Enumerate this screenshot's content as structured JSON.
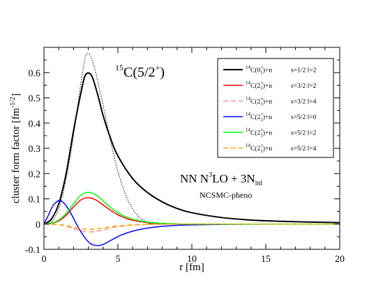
{
  "chart_data": {
    "type": "line",
    "xlabel": "r [fm]",
    "ylabel": "cluster form factor [fm^-1/2]",
    "ylabel_parts": {
      "main": "cluster form factor [fm",
      "sup": "-1/2",
      "close": "]"
    },
    "xlim": [
      0,
      20
    ],
    "ylim": [
      -0.1,
      0.7
    ],
    "x_ticks": [
      0,
      5,
      10,
      15,
      20
    ],
    "x_tick_labels": [
      "0",
      "5",
      "10",
      "15",
      "20"
    ],
    "y_ticks": [
      -0.1,
      0,
      0.1,
      0.2,
      0.3,
      0.4,
      0.5,
      0.6
    ],
    "y_tick_labels": [
      "-0.1",
      "0",
      "0.1",
      "0.2",
      "0.3",
      "0.4",
      "0.5",
      "0.6"
    ],
    "grid": false,
    "legend_position": "top-right",
    "annotations": {
      "state": {
        "base": "C(5/2",
        "mass": "15",
        "sup": "+",
        "close": ")"
      },
      "interaction": {
        "text1": "NN N",
        "sup": "3",
        "text2": "LO + 3N",
        "sub": "lnl"
      },
      "method": "NCSMC-pheno"
    },
    "series": [
      {
        "color": "#000000",
        "dash": "solid",
        "width": 2,
        "legend": {
          "nucleus": "C(0",
          "sup": "+",
          "sub": "1",
          "rest": ")+n",
          "channel": "s=1/2  l=2"
        },
        "points": [
          [
            0,
            0
          ],
          [
            0.5,
            0.02
          ],
          [
            1,
            0.08
          ],
          [
            1.5,
            0.2
          ],
          [
            2,
            0.37
          ],
          [
            2.5,
            0.52
          ],
          [
            2.8,
            0.59
          ],
          [
            3.2,
            0.59
          ],
          [
            3.6,
            0.52
          ],
          [
            4,
            0.43
          ],
          [
            4.5,
            0.34
          ],
          [
            5,
            0.27
          ],
          [
            6,
            0.18
          ],
          [
            7,
            0.125
          ],
          [
            8,
            0.088
          ],
          [
            9,
            0.062
          ],
          [
            10,
            0.045
          ],
          [
            12,
            0.026
          ],
          [
            14,
            0.016
          ],
          [
            16,
            0.011
          ],
          [
            18,
            0.008
          ],
          [
            20,
            0.006
          ]
        ]
      },
      {
        "color": "#ff0000",
        "dash": "solid",
        "width": 1.5,
        "legend": {
          "nucleus": "C(2",
          "sup": "+",
          "sub": "1",
          "rest": ")+n",
          "channel": "s=3/2  l=2"
        },
        "points": [
          [
            0,
            0
          ],
          [
            0.5,
            0.003
          ],
          [
            1,
            0.013
          ],
          [
            1.5,
            0.035
          ],
          [
            2,
            0.068
          ],
          [
            2.5,
            0.096
          ],
          [
            3,
            0.105
          ],
          [
            3.5,
            0.096
          ],
          [
            4,
            0.076
          ],
          [
            4.5,
            0.055
          ],
          [
            5,
            0.037
          ],
          [
            5.5,
            0.024
          ],
          [
            6,
            0.015
          ],
          [
            7,
            0.006
          ],
          [
            8,
            0.002
          ],
          [
            9,
            0.001
          ],
          [
            10,
            0
          ],
          [
            20,
            0
          ]
        ]
      },
      {
        "color": "#ff0000",
        "dash": "dashed",
        "opacity": 0.45,
        "width": 1.5,
        "legend": {
          "nucleus": "C(2",
          "sup": "+",
          "sub": "1",
          "rest": ")+n",
          "channel": "s=3/2  l=4"
        },
        "points": [
          [
            0,
            0
          ],
          [
            0.5,
            -0.0005
          ],
          [
            1,
            -0.002
          ],
          [
            1.5,
            -0.008
          ],
          [
            2,
            -0.018
          ],
          [
            2.5,
            -0.027
          ],
          [
            3,
            -0.031
          ],
          [
            3.5,
            -0.029
          ],
          [
            4,
            -0.023
          ],
          [
            4.5,
            -0.016
          ],
          [
            5,
            -0.01
          ],
          [
            6,
            -0.004
          ],
          [
            7,
            -0.0015
          ],
          [
            8,
            -0.0005
          ],
          [
            10,
            0
          ],
          [
            20,
            0
          ]
        ]
      },
      {
        "color": "#0000ff",
        "dash": "solid",
        "width": 1.5,
        "legend": {
          "nucleus": "C(2",
          "sup": "+",
          "sub": "1",
          "rest": ")+n",
          "channel": "s=5/2  l=0"
        },
        "points": [
          [
            0,
            0
          ],
          [
            0.3,
            0.035
          ],
          [
            0.6,
            0.072
          ],
          [
            0.9,
            0.09
          ],
          [
            1.1,
            0.093
          ],
          [
            1.4,
            0.08
          ],
          [
            1.8,
            0.045
          ],
          [
            2.2,
            0
          ],
          [
            2.6,
            -0.04
          ],
          [
            3,
            -0.07
          ],
          [
            3.3,
            -0.082
          ],
          [
            3.7,
            -0.085
          ],
          [
            4.1,
            -0.078
          ],
          [
            4.6,
            -0.062
          ],
          [
            5.2,
            -0.044
          ],
          [
            6,
            -0.028
          ],
          [
            7,
            -0.016
          ],
          [
            8,
            -0.009
          ],
          [
            9,
            -0.005
          ],
          [
            10,
            -0.003
          ],
          [
            12,
            -0.001
          ],
          [
            15,
            0
          ],
          [
            20,
            0
          ]
        ]
      },
      {
        "color": "#00ff00",
        "dash": "solid",
        "width": 1.5,
        "legend": {
          "nucleus": "C(2",
          "sup": "+",
          "sub": "1",
          "rest": ")+n",
          "channel": "s=5/2  l=2"
        },
        "points": [
          [
            0,
            0
          ],
          [
            0.5,
            0.004
          ],
          [
            1,
            0.016
          ],
          [
            1.5,
            0.042
          ],
          [
            2,
            0.08
          ],
          [
            2.5,
            0.114
          ],
          [
            3,
            0.126
          ],
          [
            3.5,
            0.116
          ],
          [
            4,
            0.092
          ],
          [
            4.5,
            0.066
          ],
          [
            5,
            0.045
          ],
          [
            5.5,
            0.03
          ],
          [
            6,
            0.019
          ],
          [
            7,
            0.008
          ],
          [
            8,
            0.003
          ],
          [
            9,
            0.001
          ],
          [
            10,
            0
          ],
          [
            20,
            0
          ]
        ]
      },
      {
        "color": "#ffa500",
        "dash": "dashed",
        "width": 1.5,
        "legend": {
          "nucleus": "C(2",
          "sup": "+",
          "sub": "1",
          "rest": ")+n",
          "channel": "s=5/2  l=4"
        },
        "points": [
          [
            0,
            0
          ],
          [
            0.5,
            -0.0005
          ],
          [
            1,
            -0.002
          ],
          [
            1.5,
            -0.006
          ],
          [
            2,
            -0.013
          ],
          [
            2.5,
            -0.019
          ],
          [
            3,
            -0.021
          ],
          [
            3.5,
            -0.019
          ],
          [
            4,
            -0.015
          ],
          [
            4.5,
            -0.011
          ],
          [
            5,
            -0.007
          ],
          [
            6,
            -0.003
          ],
          [
            7,
            -0.001
          ],
          [
            8,
            -0.0003
          ],
          [
            10,
            0
          ],
          [
            20,
            0
          ]
        ]
      },
      {
        "color": "#000000",
        "dash": "dotted",
        "width": 1,
        "points": [
          [
            0,
            0
          ],
          [
            0.5,
            0.01
          ],
          [
            1,
            0.06
          ],
          [
            1.5,
            0.18
          ],
          [
            2,
            0.35
          ],
          [
            2.5,
            0.56
          ],
          [
            2.8,
            0.66
          ],
          [
            3,
            0.675
          ],
          [
            3.2,
            0.66
          ],
          [
            3.5,
            0.6
          ],
          [
            4,
            0.47
          ],
          [
            4.5,
            0.33
          ],
          [
            5,
            0.21
          ],
          [
            5.5,
            0.12
          ],
          [
            6,
            0.06
          ],
          [
            6.5,
            0.025
          ],
          [
            7,
            0.008
          ],
          [
            7.5,
            0.002
          ],
          [
            8,
            0
          ],
          [
            20,
            0
          ]
        ]
      }
    ]
  }
}
